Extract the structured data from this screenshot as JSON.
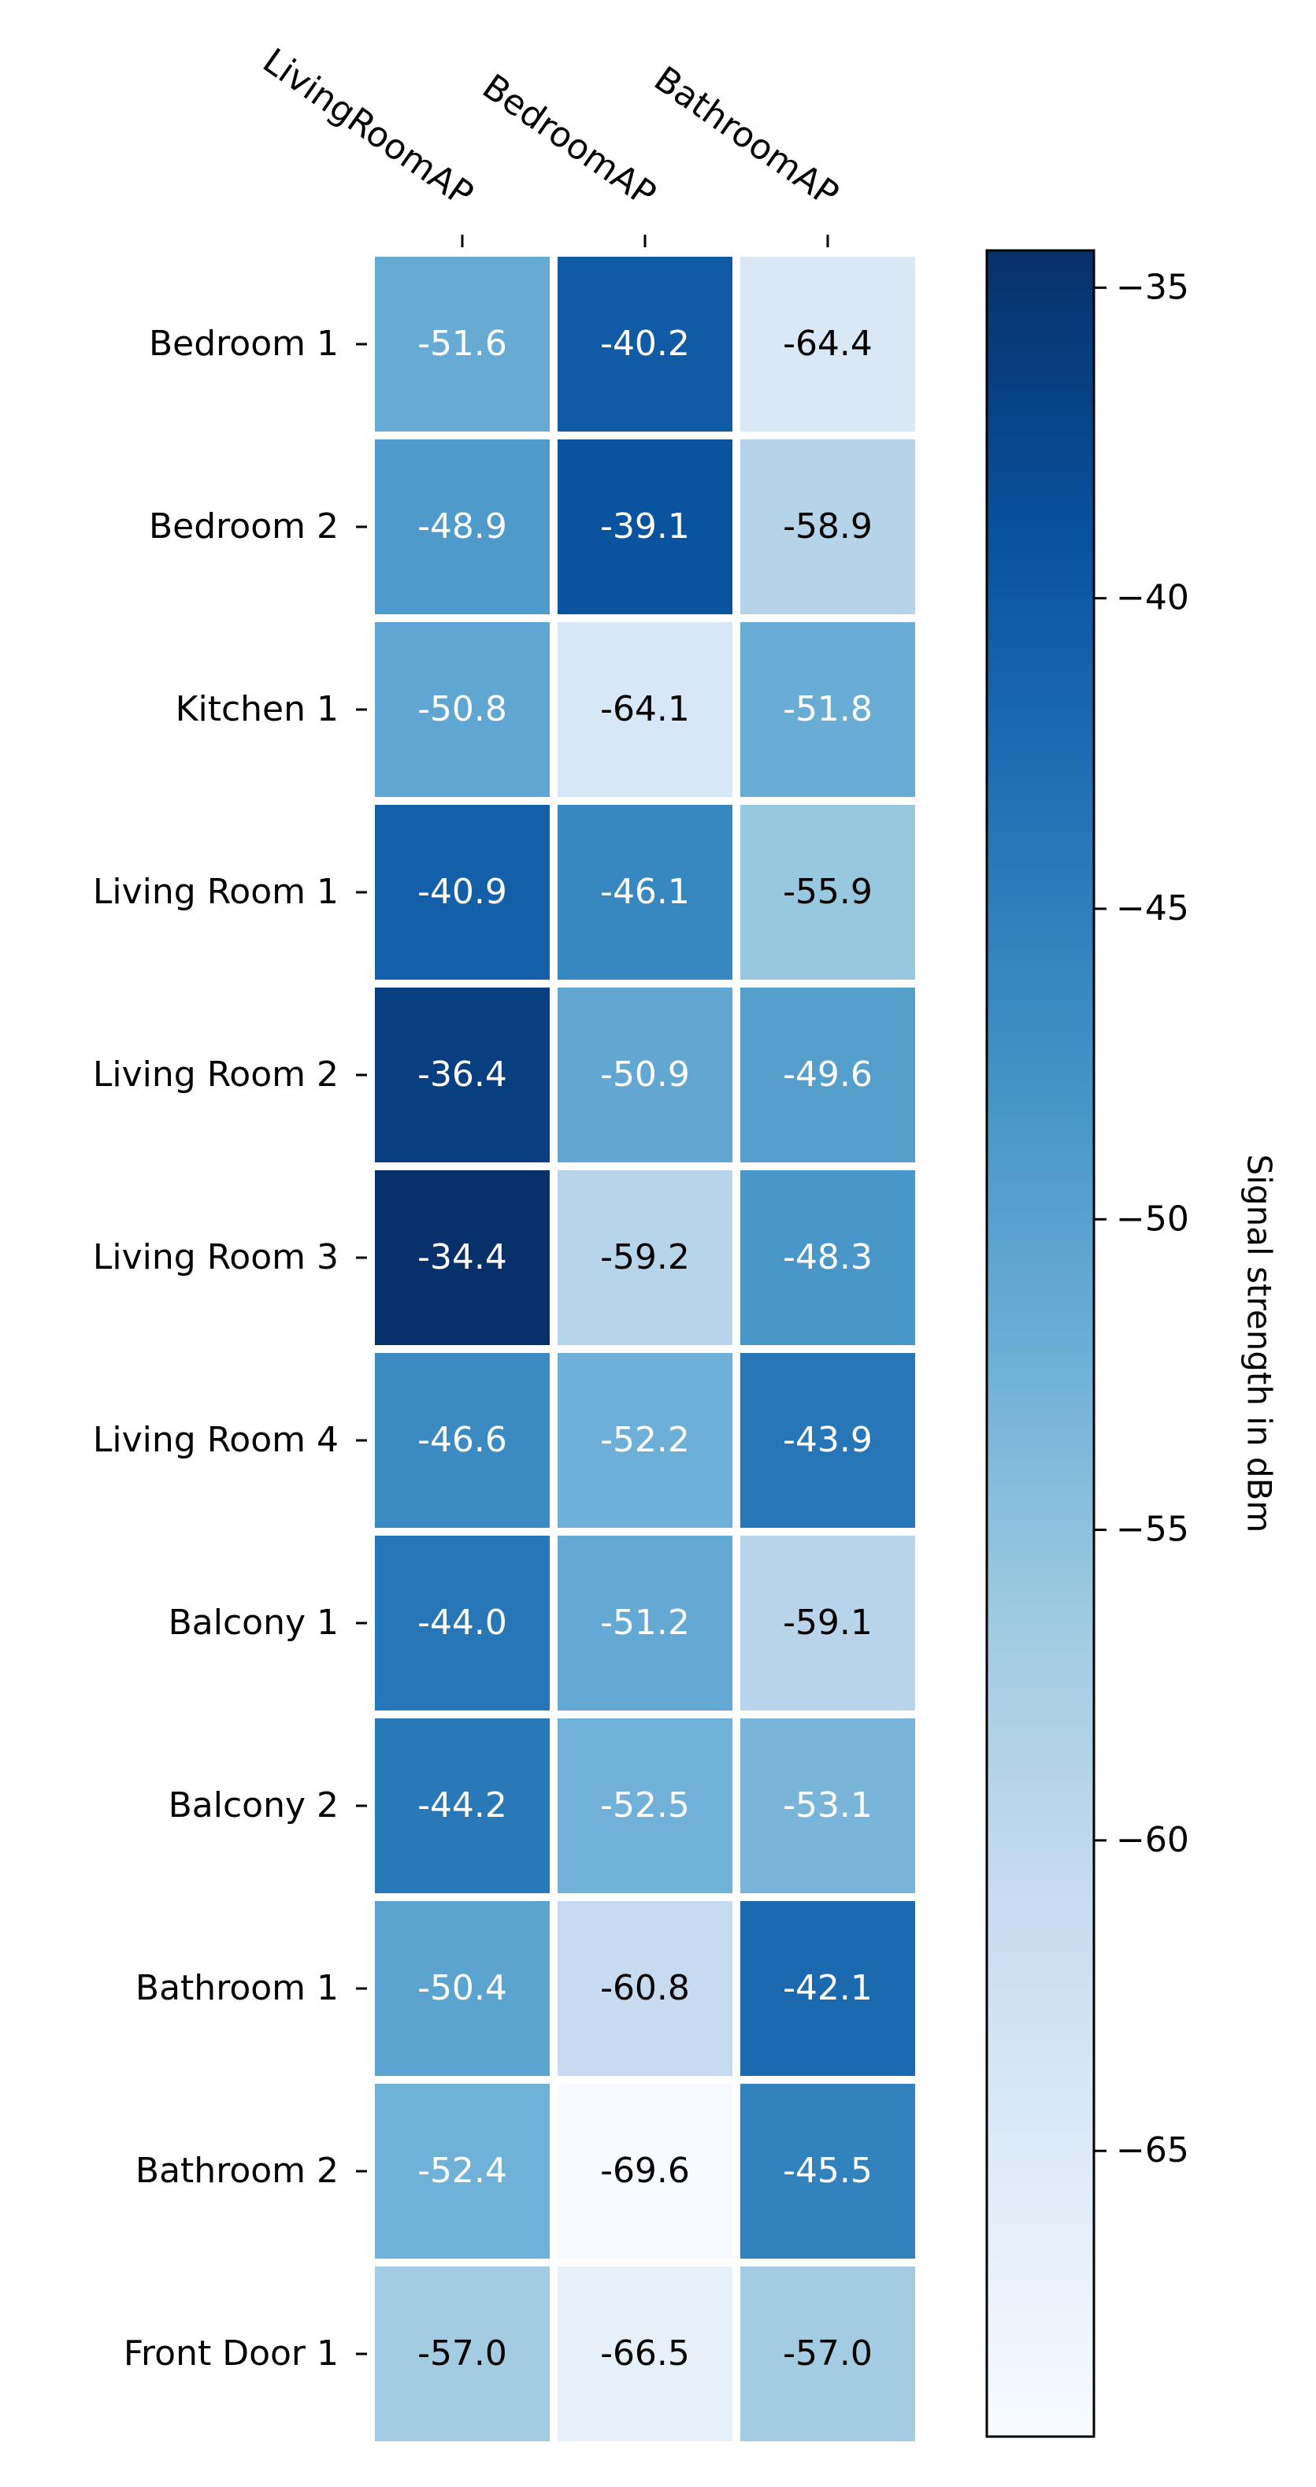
{
  "chart_data": {
    "type": "heatmap",
    "title": "",
    "x_categories": [
      "LivingRoomAP",
      "BedroomAP",
      "BathroomAP"
    ],
    "y_categories": [
      "Bedroom 1",
      "Bedroom 2",
      "Kitchen 1",
      "Living Room 1",
      "Living Room 2",
      "Living Room 3",
      "Living Room 4",
      "Balcony 1",
      "Balcony 2",
      "Bathroom 1",
      "Bathroom 2",
      "Front Door 1"
    ],
    "values": [
      [
        -51.6,
        -40.2,
        -64.4
      ],
      [
        -48.9,
        -39.1,
        -58.9
      ],
      [
        -50.8,
        -64.1,
        -51.8
      ],
      [
        -40.9,
        -46.1,
        -55.9
      ],
      [
        -36.4,
        -50.9,
        -49.6
      ],
      [
        -34.4,
        -59.2,
        -48.3
      ],
      [
        -46.6,
        -52.2,
        -43.9
      ],
      [
        -44.0,
        -51.2,
        -59.1
      ],
      [
        -44.2,
        -52.5,
        -53.1
      ],
      [
        -50.4,
        -60.8,
        -42.1
      ],
      [
        -52.4,
        -69.6,
        -45.5
      ],
      [
        -57.0,
        -66.5,
        -57.0
      ]
    ],
    "value_labels": [
      [
        "-51.6",
        "-40.2",
        "-64.4"
      ],
      [
        "-48.9",
        "-39.1",
        "-58.9"
      ],
      [
        "-50.8",
        "-64.1",
        "-51.8"
      ],
      [
        "-40.9",
        "-46.1",
        "-55.9"
      ],
      [
        "-36.4",
        "-50.9",
        "-49.6"
      ],
      [
        "-34.4",
        "-59.2",
        "-48.3"
      ],
      [
        "-46.6",
        "-52.2",
        "-43.9"
      ],
      [
        "-44.0",
        "-51.2",
        "-59.1"
      ],
      [
        "-44.2",
        "-52.5",
        "-53.1"
      ],
      [
        "-50.4",
        "-60.8",
        "-42.1"
      ],
      [
        "-52.4",
        "-69.6",
        "-45.5"
      ],
      [
        "-57.0",
        "-66.5",
        "-57.0"
      ]
    ],
    "colorscale": "Blues",
    "color_range": [
      -69.6,
      -34.4
    ],
    "colorbar": {
      "label": "Signal strength in dBm",
      "ticks": [
        -35,
        -40,
        -45,
        -50,
        -55,
        -60,
        -65
      ],
      "tick_labels": [
        "−35",
        "−40",
        "−45",
        "−50",
        "−55",
        "−60",
        "−65"
      ],
      "range": [
        -69.6,
        -34.4
      ]
    }
  }
}
